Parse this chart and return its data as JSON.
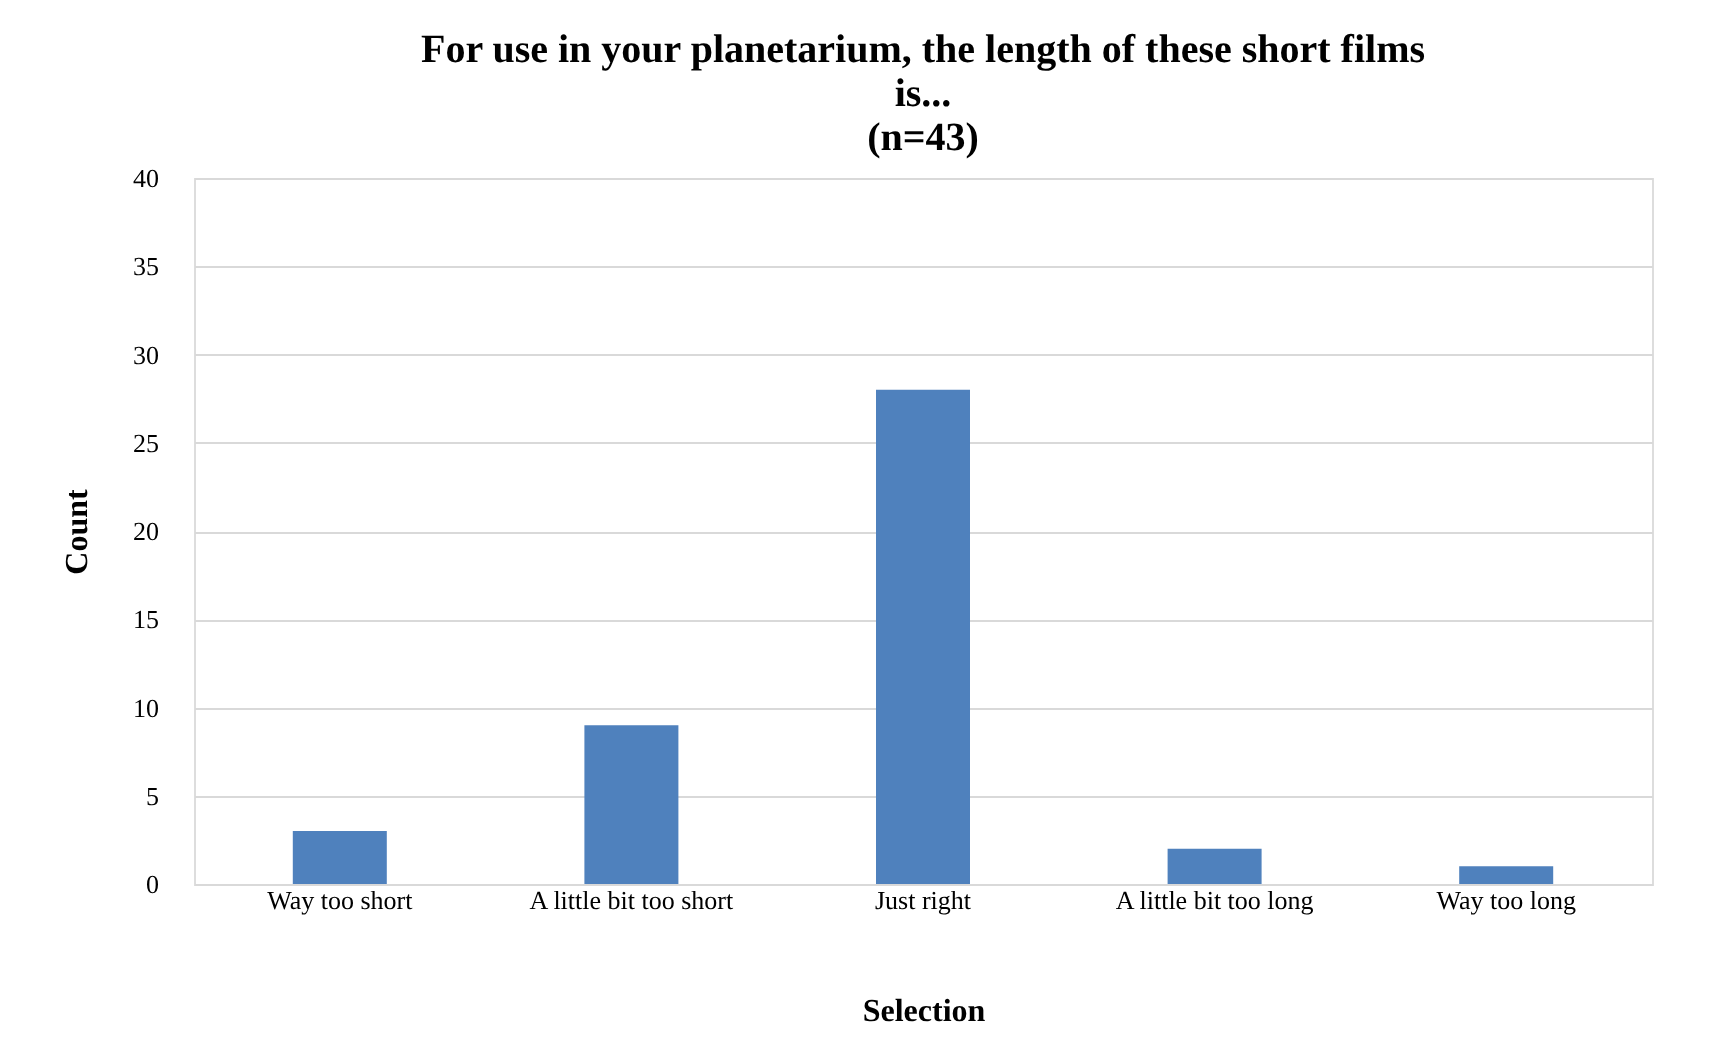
{
  "chart_data": {
    "type": "bar",
    "title": "For use in your planetarium, the length of these short films\nis...\n(n=43)",
    "xlabel": "Selection",
    "ylabel": "Count",
    "categories": [
      "Way too short",
      "A little bit too short",
      "Just right",
      "A little bit too long",
      "Way too long"
    ],
    "values": [
      3,
      9,
      28,
      2,
      1
    ],
    "color": "#4f81bd",
    "ylim": [
      0,
      40
    ],
    "yticks": [
      0,
      5,
      10,
      15,
      20,
      25,
      30,
      35,
      40
    ],
    "grid": "y"
  }
}
